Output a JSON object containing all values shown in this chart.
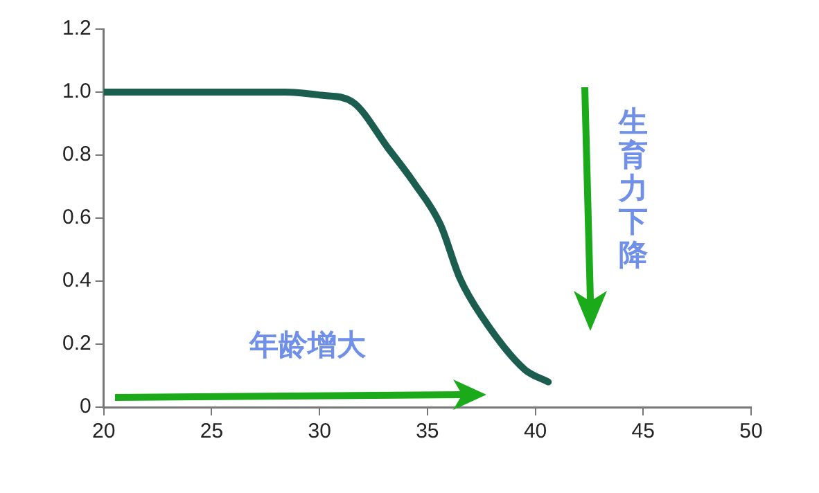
{
  "chart_data": {
    "type": "line",
    "x": [
      20,
      28.4,
      30.1,
      31.5,
      33.2,
      34.4,
      35.6,
      36.5,
      37.5,
      39.5,
      40.6
    ],
    "series": [
      {
        "color": "#1b5e50",
        "values": [
          1.0,
          1.0,
          0.99,
          0.97,
          0.82,
          0.71,
          0.58,
          0.41,
          0.29,
          0.12,
          0.08
        ]
      }
    ],
    "xlim": [
      20,
      50
    ],
    "xticks": [
      20,
      25,
      30,
      35,
      40,
      45,
      50
    ],
    "ylim": [
      0,
      1.2
    ],
    "yticks": [
      0,
      0.2,
      0.4,
      0.6,
      {
        "value": 0.8,
        "label": "0.8"
      },
      {
        "value": 1,
        "label": "1.0"
      },
      1.2
    ],
    "annotations": [
      "年龄增大",
      "生育力下降"
    ],
    "grid": false,
    "legend": false,
    "marker": "none",
    "line_style": "solid"
  }
}
